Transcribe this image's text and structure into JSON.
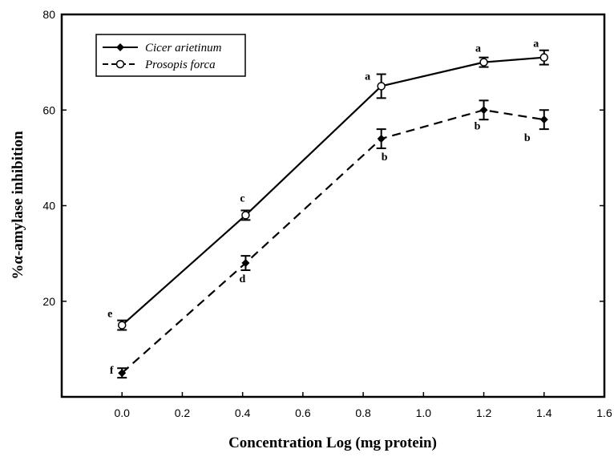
{
  "chart_data": {
    "type": "line",
    "title": "",
    "xlabel": "Concentration Log (mg protein)",
    "ylabel": "%α-amylase inhibition",
    "xlim": [
      -0.2,
      1.6
    ],
    "ylim": [
      0,
      80
    ],
    "xticks": [
      0.0,
      0.2,
      0.4,
      0.6,
      0.8,
      1.0,
      1.2,
      1.4,
      1.6
    ],
    "xtick_labels": [
      "0.0",
      "0.2",
      "0.4",
      "0.6",
      "0.8",
      "1.0",
      "1.2",
      "1.4",
      "1.6"
    ],
    "yticks": [
      20,
      40,
      60,
      80
    ],
    "ytick_labels": [
      "20",
      "40",
      "60",
      "80"
    ],
    "grid": false,
    "legend_position": "top-left",
    "series": [
      {
        "name": "Cicer arietinum",
        "marker": "filled-diamond",
        "line_style": "dashed",
        "x": [
          0.0,
          0.41,
          0.86,
          1.2,
          1.4
        ],
        "y": [
          5,
          28,
          54,
          60,
          58
        ],
        "error": [
          1,
          1.5,
          2,
          2,
          2
        ],
        "labels": [
          "f",
          "d",
          "b",
          "b",
          "b"
        ]
      },
      {
        "name": "Prosopis forca",
        "marker": "open-circle",
        "line_style": "solid",
        "x": [
          0.0,
          0.41,
          0.86,
          1.2,
          1.4
        ],
        "y": [
          15,
          38,
          65,
          70,
          71
        ],
        "error": [
          1,
          1,
          2.5,
          1,
          1.5
        ],
        "labels": [
          "e",
          "c",
          "a",
          "a",
          "a"
        ]
      }
    ]
  }
}
